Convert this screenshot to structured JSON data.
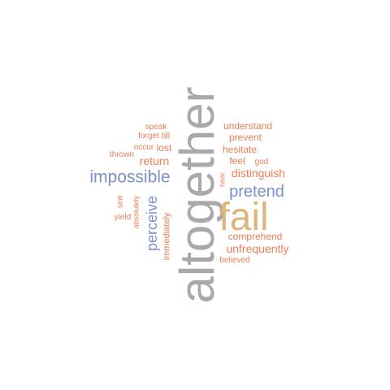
{
  "word_cloud": {
    "colors": {
      "orange": "#EE7D54",
      "blue": "#7B8FC8",
      "gray": "#A9A9A9",
      "tan": "#DDB67B"
    },
    "words": [
      {
        "text": "altogether",
        "color": "gray"
      },
      {
        "text": "fail",
        "color": "tan"
      },
      {
        "text": "impossible",
        "color": "blue"
      },
      {
        "text": "pretend",
        "color": "blue"
      },
      {
        "text": "perceive",
        "color": "blue"
      },
      {
        "text": "unfrequently",
        "color": "orange"
      },
      {
        "text": "distinguish",
        "color": "orange"
      },
      {
        "text": "return",
        "color": "orange"
      },
      {
        "text": "immediately",
        "color": "orange"
      },
      {
        "text": "understand",
        "color": "orange"
      },
      {
        "text": "prevent",
        "color": "orange"
      },
      {
        "text": "hesitate",
        "color": "orange"
      },
      {
        "text": "comprehend",
        "color": "orange"
      },
      {
        "text": "feel",
        "color": "orange"
      },
      {
        "text": "lost",
        "color": "orange"
      },
      {
        "text": "till",
        "color": "orange"
      },
      {
        "text": "speak",
        "color": "orange"
      },
      {
        "text": "forget",
        "color": "orange"
      },
      {
        "text": "occur",
        "color": "orange"
      },
      {
        "text": "thrown",
        "color": "orange"
      },
      {
        "text": "god",
        "color": "orange"
      },
      {
        "text": "hear",
        "color": "orange"
      },
      {
        "text": "believed",
        "color": "orange"
      },
      {
        "text": "sink",
        "color": "orange"
      },
      {
        "text": "yield",
        "color": "orange"
      },
      {
        "text": "absolutely",
        "color": "orange"
      }
    ]
  }
}
